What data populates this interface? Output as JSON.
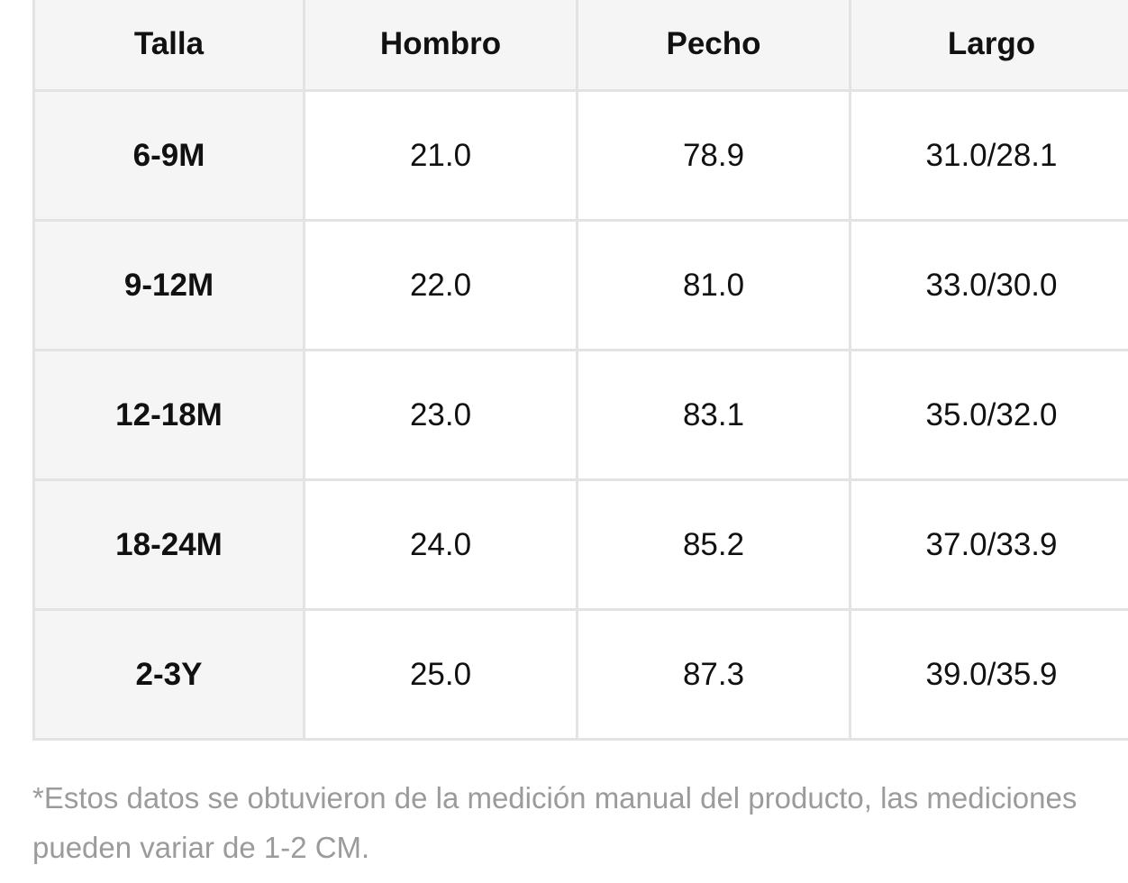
{
  "table": {
    "headers": [
      "Talla",
      "Hombro",
      "Pecho",
      "Largo"
    ],
    "rows": [
      [
        "6-9M",
        "21.0",
        "78.9",
        "31.0/28.1"
      ],
      [
        "9-12M",
        "22.0",
        "81.0",
        "33.0/30.0"
      ],
      [
        "12-18M",
        "23.0",
        "83.1",
        "35.0/32.0"
      ],
      [
        "18-24M",
        "24.0",
        "85.2",
        "37.0/33.9"
      ],
      [
        "2-3Y",
        "25.0",
        "87.3",
        "39.0/35.9"
      ]
    ]
  },
  "note": "*Estos datos se obtuvieron de la medición manual del producto, las mediciones pueden variar de 1-2 CM.",
  "colors": {
    "header_bg": "#f5f5f5",
    "border": "#e3e3e3",
    "note_text": "#9b9b9b"
  }
}
